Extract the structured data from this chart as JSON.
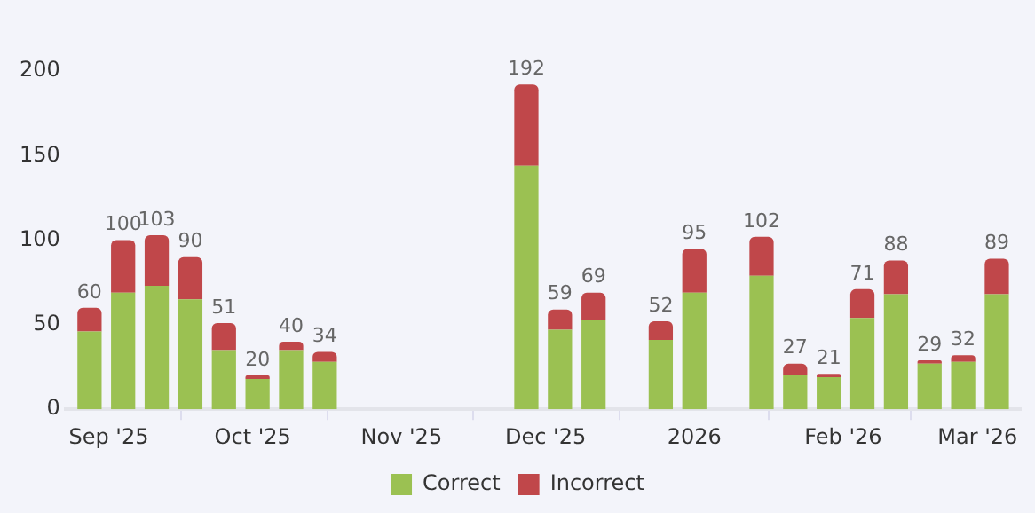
{
  "chart_data": {
    "type": "bar",
    "stacked": true,
    "x": [
      "2025-08-28",
      "2025-09-04",
      "2025-09-11",
      "2025-09-18",
      "2025-09-25",
      "2025-10-02",
      "2025-10-09",
      "2025-10-16",
      "2025-11-27",
      "2025-12-04",
      "2025-12-11",
      "2025-12-25",
      "2026-01-01",
      "2026-01-15",
      "2026-01-22",
      "2026-01-29",
      "2026-02-05",
      "2026-02-12",
      "2026-02-19",
      "2026-02-26",
      "2026-03-05"
    ],
    "series": [
      {
        "name": "Correct",
        "color": "#9bc152",
        "values": [
          46,
          69,
          73,
          65,
          35,
          18,
          35,
          28,
          144,
          47,
          53,
          41,
          69,
          79,
          20,
          19,
          54,
          68,
          27,
          28,
          68
        ]
      },
      {
        "name": "Incorrect",
        "color": "#c0474a",
        "values": [
          14,
          31,
          30,
          25,
          16,
          2,
          5,
          6,
          48,
          12,
          16,
          11,
          26,
          23,
          7,
          2,
          17,
          20,
          2,
          4,
          21
        ]
      }
    ],
    "totals": [
      "60",
      "100",
      "103",
      "90",
      "51",
      "20",
      "40",
      "34",
      "192",
      "59",
      "69",
      "52",
      "95",
      "102",
      "27",
      "21",
      "71",
      "88",
      "29",
      "32",
      "89"
    ],
    "xlim": [
      "2025-08-23",
      "2026-03-10"
    ],
    "xticks": [
      {
        "value": "2025-09-01",
        "label": "Sep '25"
      },
      {
        "value": "2025-10-01",
        "label": "Oct '25"
      },
      {
        "value": "2025-11-01",
        "label": "Nov '25"
      },
      {
        "value": "2025-12-01",
        "label": "Dec '25"
      },
      {
        "value": "2026-01-01",
        "label": "2026"
      },
      {
        "value": "2026-02-01",
        "label": "Feb '26"
      },
      {
        "value": "2026-03-01",
        "label": "Mar '26"
      }
    ],
    "ylim": [
      0,
      200
    ],
    "yticks": [
      0,
      50,
      100,
      150,
      200
    ],
    "grid": false,
    "legend": "bottom"
  }
}
